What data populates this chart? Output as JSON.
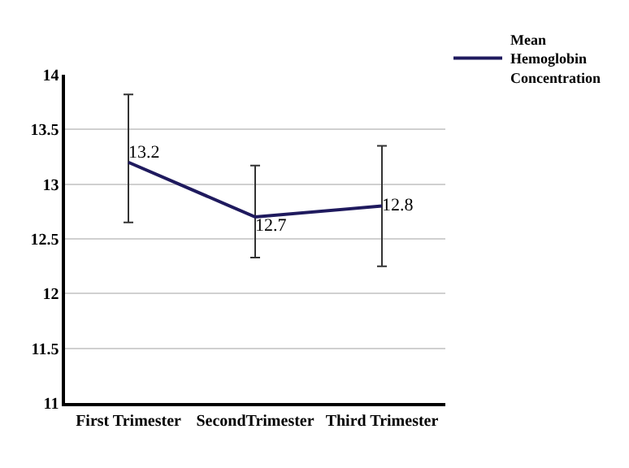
{
  "chart_data": {
    "type": "line",
    "categories": [
      "First Trimester",
      "SecondTrimester",
      "Third Trimester"
    ],
    "series": [
      {
        "name": "Mean Hemoglobin Concentration",
        "color": "#1f1a5e",
        "values": [
          13.2,
          12.7,
          12.8
        ],
        "errors": [
          [
            12.65,
            13.82
          ],
          [
            12.33,
            13.17
          ],
          [
            12.25,
            13.35
          ]
        ]
      }
    ],
    "ylim": [
      11,
      14
    ],
    "yticks": [
      11,
      11.5,
      12,
      12.5,
      13,
      13.5,
      14
    ],
    "grid": "y",
    "legend": "top right",
    "marker": "none",
    "line_style": "solid",
    "data_labels": true
  }
}
